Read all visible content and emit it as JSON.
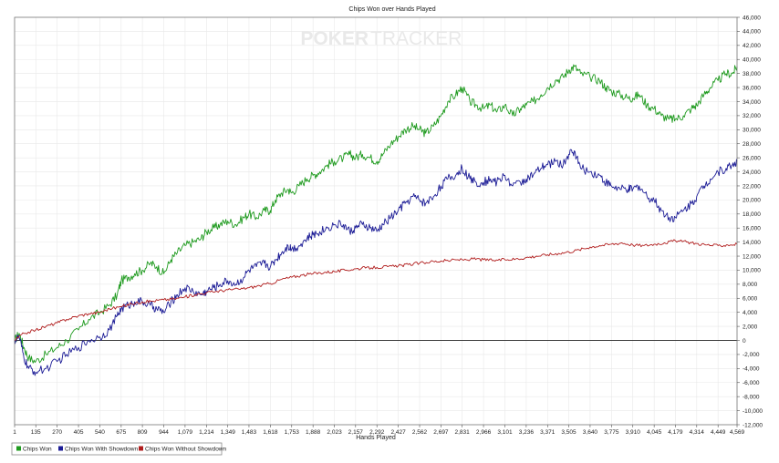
{
  "chart_data": {
    "type": "line",
    "title": "Chips Won over Hands Played",
    "xlabel": "Hands Played",
    "ylabel": "",
    "watermark": {
      "left": "POKER",
      "right": "TRACKER"
    },
    "xlim": [
      1,
      4569
    ],
    "ylim": [
      -12000,
      46000
    ],
    "x_ticks": [
      1,
      135,
      270,
      405,
      540,
      675,
      809,
      944,
      1079,
      1214,
      1349,
      1483,
      1618,
      1753,
      1888,
      2023,
      2157,
      2292,
      2427,
      2562,
      2697,
      2831,
      2966,
      3101,
      3236,
      3371,
      3505,
      3640,
      3775,
      3910,
      4045,
      4179,
      4314,
      4449,
      4569
    ],
    "x_tick_labels": [
      "1",
      "135",
      "270",
      "405",
      "540",
      "675",
      "809",
      "944",
      "1,079",
      "1,214",
      "1,349",
      "1,483",
      "1,618",
      "1,753",
      "1,888",
      "2,023",
      "2,157",
      "2,292",
      "2,427",
      "2,562",
      "2,697",
      "2,831",
      "2,966",
      "3,101",
      "3,236",
      "3,371",
      "3,505",
      "3,640",
      "3,775",
      "3,910",
      "4,045",
      "4,179",
      "4,314",
      "4,449",
      "4,569"
    ],
    "y_ticks": [
      -12000,
      -10000,
      -8000,
      -6000,
      -4000,
      -2000,
      0,
      2000,
      4000,
      6000,
      8000,
      10000,
      12000,
      14000,
      16000,
      18000,
      20000,
      22000,
      24000,
      26000,
      28000,
      30000,
      32000,
      34000,
      36000,
      38000,
      40000,
      42000,
      44000,
      46000
    ],
    "y_tick_labels": [
      "-12,000",
      "-10,000",
      "-8,000",
      "-6,000",
      "-4,000",
      "-2,000",
      "0",
      "2,000",
      "4,000",
      "6,000",
      "8,000",
      "10,000",
      "12,000",
      "14,000",
      "16,000",
      "18,000",
      "20,000",
      "22,000",
      "24,000",
      "26,000",
      "28,000",
      "30,000",
      "32,000",
      "34,000",
      "36,000",
      "38,000",
      "40,000",
      "42,000",
      "44,000",
      "46,000"
    ],
    "grid": true,
    "legend": "bottom-left",
    "series": [
      {
        "name": "Chips Won",
        "color": "#1e9a1e",
        "x": [
          1,
          30,
          60,
          90,
          135,
          200,
          270,
          330,
          405,
          470,
          540,
          600,
          650,
          675,
          720,
          760,
          809,
          860,
          900,
          944,
          990,
          1030,
          1079,
          1130,
          1180,
          1214,
          1260,
          1300,
          1349,
          1400,
          1450,
          1483,
          1530,
          1580,
          1618,
          1650,
          1690,
          1730,
          1753,
          1800,
          1850,
          1888,
          1930,
          1980,
          2023,
          2080,
          2120,
          2157,
          2200,
          2250,
          2292,
          2330,
          2380,
          2427,
          2470,
          2520,
          2562,
          2600,
          2650,
          2697,
          2740,
          2790,
          2831,
          2880,
          2920,
          2966,
          3010,
          3050,
          3101,
          3150,
          3200,
          3236,
          3280,
          3330,
          3371,
          3420,
          3470,
          3505,
          3540,
          3580,
          3640,
          3700,
          3740,
          3775,
          3830,
          3880,
          3910,
          3950,
          4000,
          4045,
          4090,
          4140,
          4179,
          4230,
          4280,
          4314,
          4360,
          4400,
          4449,
          4500,
          4540,
          4569
        ],
        "values": [
          0,
          1000,
          -1000,
          -2500,
          -3000,
          -2000,
          -1000,
          0,
          1500,
          3000,
          4000,
          5000,
          6500,
          8500,
          9000,
          9500,
          10000,
          11000,
          10500,
          9500,
          11500,
          12500,
          13500,
          14000,
          14500,
          15500,
          16000,
          16500,
          17000,
          16500,
          17500,
          18000,
          17500,
          18500,
          18500,
          20000,
          21000,
          21500,
          21000,
          22000,
          23000,
          23500,
          24000,
          25000,
          25500,
          26000,
          26500,
          26000,
          26500,
          26000,
          25500,
          26500,
          28000,
          29000,
          30000,
          30500,
          30000,
          29500,
          30500,
          32000,
          34000,
          35000,
          36000,
          34000,
          33500,
          33000,
          33500,
          32500,
          33500,
          32000,
          33000,
          33500,
          34000,
          35000,
          36000,
          37000,
          37500,
          38500,
          39000,
          38000,
          37500,
          37000,
          36000,
          35500,
          35000,
          34500,
          34500,
          35000,
          33500,
          33000,
          32000,
          31500,
          31500,
          32000,
          33000,
          33500,
          35000,
          36000,
          37000,
          38000,
          38000,
          39000
        ]
      },
      {
        "name": "Chips Won With Showdown",
        "color": "#1c1c96",
        "x": [
          1,
          30,
          60,
          90,
          135,
          200,
          270,
          330,
          405,
          470,
          540,
          600,
          650,
          675,
          720,
          760,
          809,
          860,
          900,
          944,
          990,
          1030,
          1079,
          1130,
          1180,
          1214,
          1260,
          1300,
          1349,
          1400,
          1450,
          1483,
          1530,
          1580,
          1618,
          1650,
          1690,
          1730,
          1753,
          1800,
          1850,
          1888,
          1930,
          1980,
          2023,
          2080,
          2120,
          2157,
          2200,
          2250,
          2292,
          2330,
          2380,
          2427,
          2470,
          2520,
          2562,
          2600,
          2650,
          2697,
          2740,
          2790,
          2831,
          2880,
          2920,
          2966,
          3010,
          3050,
          3101,
          3150,
          3200,
          3236,
          3280,
          3330,
          3371,
          3420,
          3470,
          3505,
          3540,
          3580,
          3640,
          3700,
          3740,
          3775,
          3830,
          3880,
          3910,
          3950,
          4000,
          4045,
          4090,
          4140,
          4179,
          4230,
          4280,
          4314,
          4360,
          4400,
          4449,
          4500,
          4540,
          4569
        ],
        "values": [
          0,
          500,
          -2500,
          -4000,
          -4500,
          -4000,
          -3000,
          -2000,
          -1000,
          0,
          500,
          1500,
          3500,
          4500,
          5000,
          5500,
          5500,
          5000,
          4500,
          4000,
          5500,
          6500,
          7500,
          7000,
          6500,
          7000,
          7500,
          8000,
          8500,
          8000,
          9000,
          10000,
          10500,
          11000,
          10500,
          11500,
          12500,
          13500,
          13000,
          13500,
          14500,
          15000,
          15500,
          16000,
          16500,
          16500,
          15500,
          16000,
          16500,
          16000,
          15500,
          16500,
          17500,
          18500,
          19500,
          20500,
          20000,
          19500,
          20500,
          22000,
          23000,
          23500,
          24500,
          23000,
          22500,
          22500,
          23000,
          22500,
          23500,
          22000,
          22500,
          23000,
          23500,
          24500,
          25000,
          25500,
          25000,
          26500,
          27000,
          24500,
          24000,
          23500,
          22500,
          22000,
          21500,
          21500,
          21500,
          22000,
          20500,
          20000,
          18500,
          17500,
          17500,
          18500,
          19500,
          20500,
          22000,
          23000,
          24000,
          24500,
          25000,
          25500
        ]
      },
      {
        "name": "Chips Won Without Showdown",
        "color": "#b01c1c",
        "x": [
          1,
          60,
          135,
          200,
          270,
          330,
          405,
          470,
          540,
          600,
          675,
          740,
          809,
          870,
          944,
          1010,
          1079,
          1140,
          1214,
          1280,
          1349,
          1420,
          1483,
          1550,
          1618,
          1690,
          1753,
          1820,
          1888,
          1960,
          2023,
          2090,
          2157,
          2220,
          2292,
          2360,
          2427,
          2490,
          2562,
          2630,
          2697,
          2760,
          2831,
          2900,
          2966,
          3030,
          3101,
          3170,
          3236,
          3300,
          3371,
          3440,
          3505,
          3570,
          3640,
          3700,
          3775,
          3840,
          3910,
          3980,
          4045,
          4110,
          4179,
          4250,
          4314,
          4380,
          4449,
          4510,
          4569
        ],
        "values": [
          0,
          1000,
          1500,
          2000,
          2500,
          3000,
          3500,
          3800,
          4000,
          4500,
          4800,
          5200,
          5500,
          5600,
          5800,
          5900,
          6200,
          6500,
          6800,
          7000,
          7200,
          7300,
          7500,
          7800,
          8100,
          8700,
          9000,
          9300,
          9500,
          9700,
          9800,
          10000,
          10200,
          10300,
          10400,
          10500,
          10600,
          10800,
          11000,
          11200,
          11300,
          11400,
          11500,
          11600,
          11500,
          11400,
          11500,
          11600,
          11800,
          12000,
          12200,
          12400,
          12600,
          12900,
          13300,
          13500,
          13700,
          13900,
          13600,
          13500,
          13700,
          13900,
          14200,
          14000,
          13800,
          13600,
          13500,
          13600,
          13700
        ]
      }
    ]
  }
}
